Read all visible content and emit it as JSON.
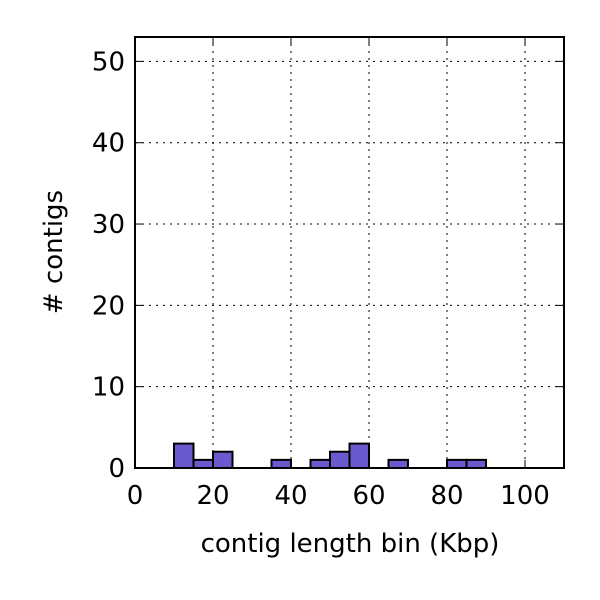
{
  "chart_data": {
    "type": "histogram",
    "xlabel": "contig length bin (Kbp)",
    "ylabel": "# contigs",
    "bins": [
      0,
      5,
      10,
      15,
      20,
      25,
      30,
      35,
      40,
      45,
      50,
      55,
      60,
      65,
      70,
      75,
      80,
      85,
      90,
      95,
      100,
      105,
      110
    ],
    "values": [
      0,
      0,
      3,
      1,
      2,
      0,
      0,
      1,
      0,
      1,
      2,
      3,
      0,
      1,
      0,
      0,
      1,
      1,
      0,
      0,
      0,
      0
    ],
    "color": "#6a5acd",
    "xlim": [
      0,
      110
    ],
    "ylim": [
      0,
      53
    ],
    "xticks": [
      0,
      20,
      40,
      60,
      80,
      100
    ],
    "yticks": [
      0,
      10,
      20,
      30,
      40,
      50
    ],
    "grid": true
  }
}
